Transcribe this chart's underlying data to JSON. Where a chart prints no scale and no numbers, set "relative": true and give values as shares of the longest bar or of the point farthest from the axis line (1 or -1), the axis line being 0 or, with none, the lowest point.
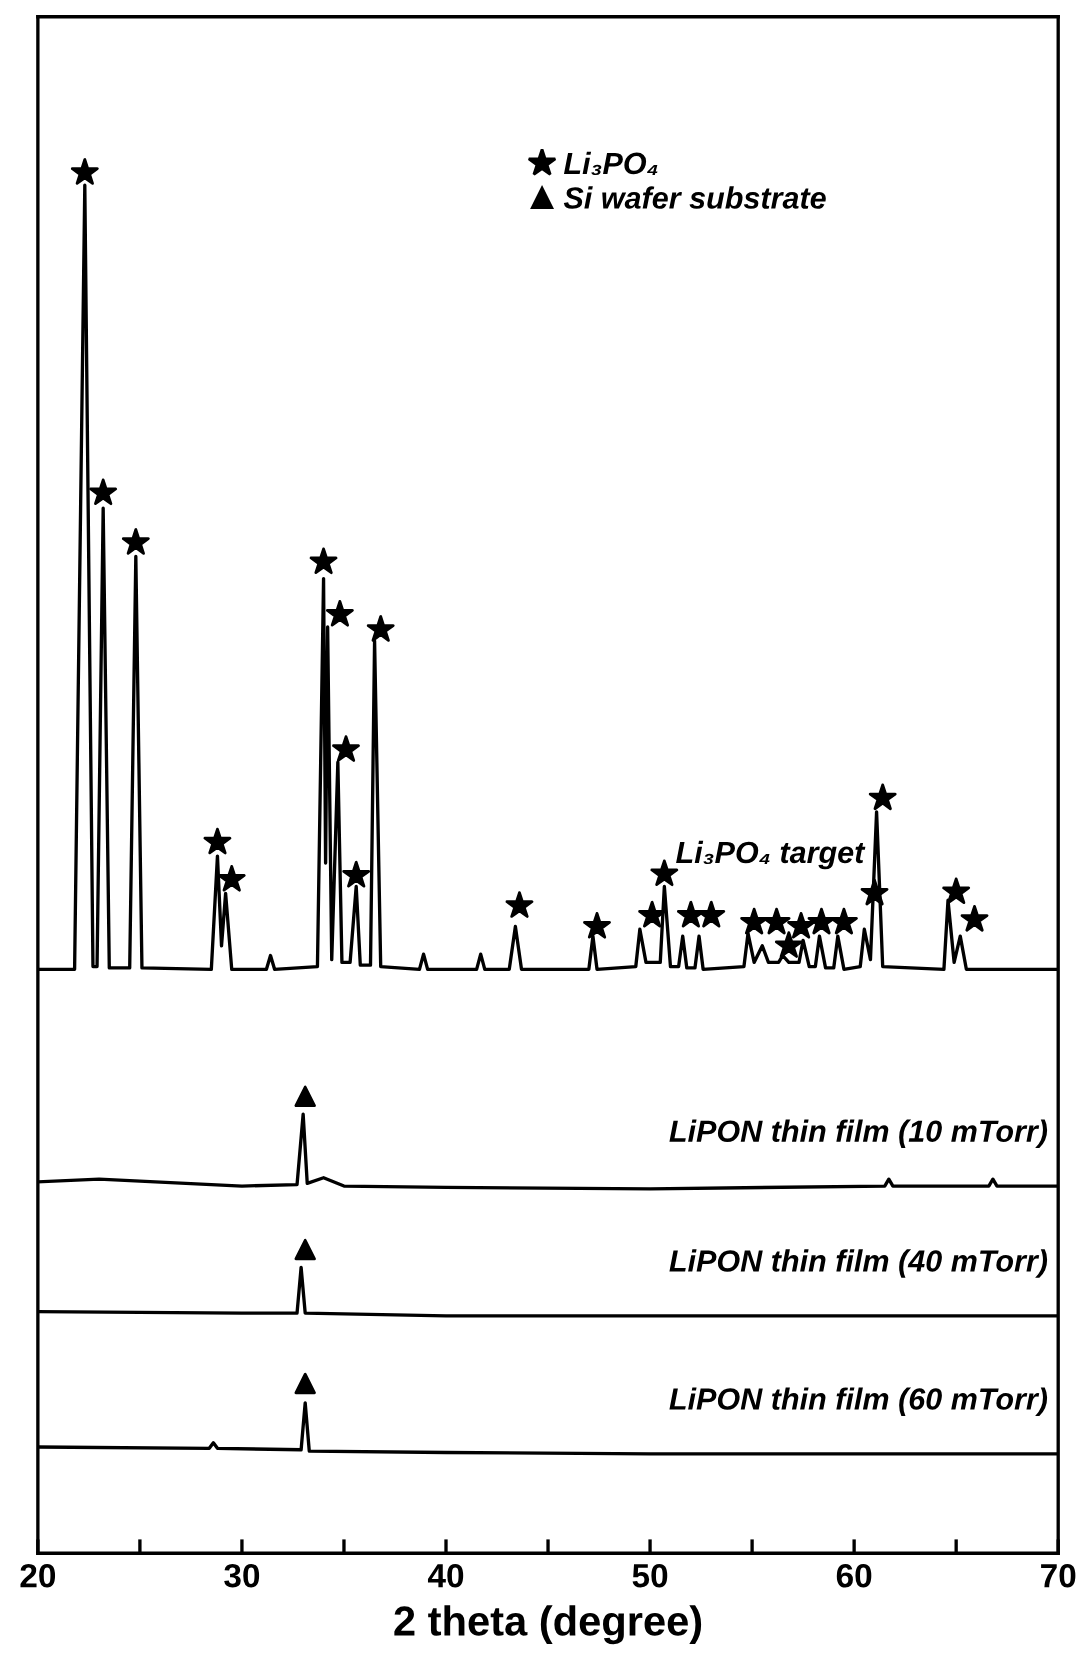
{
  "chart_data": {
    "type": "line",
    "relative": true,
    "xlabel": "2 theta (degree)",
    "xlim": [
      20,
      70
    ],
    "xticks": [
      20,
      {
        "value": 25,
        "label": null
      },
      30,
      {
        "value": 35,
        "label": null
      },
      40,
      {
        "value": 45,
        "label": null
      },
      50,
      {
        "value": 55,
        "label": null
      },
      60,
      {
        "value": 65,
        "label": null
      },
      70
    ],
    "tick_labels": "x",
    "grid": false,
    "legend": "top right",
    "line_style": "solid",
    "series": [
      {
        "name": "Li₃PO₄ target",
        "color": "#000000",
        "marker": "none",
        "x": [
          20,
          21.8,
          22.3,
          22.7,
          22.9,
          23.2,
          23.5,
          24.5,
          24.8,
          25.1,
          28.5,
          28.8,
          29.0,
          29.2,
          29.5,
          31.2,
          31.4,
          31.6,
          33.7,
          34.0,
          34.1,
          34.2,
          34.4,
          34.7,
          34.9,
          35.3,
          35.6,
          35.8,
          36.3,
          36.5,
          36.8,
          38.7,
          38.9,
          39.1,
          41.5,
          41.7,
          41.9,
          43.1,
          43.4,
          43.7,
          47.0,
          47.2,
          47.4,
          49.3,
          49.5,
          49.8,
          50.5,
          50.7,
          51.0,
          51.4,
          51.6,
          51.8,
          52.2,
          52.4,
          52.6,
          54.6,
          54.8,
          55.1,
          55.5,
          55.8,
          56.3,
          56.5,
          56.8,
          57.3,
          57.5,
          57.8,
          58.1,
          58.3,
          58.6,
          59.0,
          59.2,
          59.5,
          60.3,
          60.5,
          60.8,
          61.1,
          61.4,
          64.4,
          64.6,
          64.9,
          65.2,
          65.5,
          70
        ],
        "values": [
          0.423,
          0.423,
          0.991,
          0.425,
          0.425,
          0.757,
          0.424,
          0.424,
          0.722,
          0.424,
          0.423,
          0.505,
          0.44,
          0.478,
          0.423,
          0.423,
          0.433,
          0.423,
          0.425,
          0.706,
          0.5,
          0.671,
          0.43,
          0.573,
          0.428,
          0.428,
          0.483,
          0.426,
          0.426,
          0.661,
          0.425,
          0.423,
          0.434,
          0.423,
          0.423,
          0.434,
          0.423,
          0.423,
          0.454,
          0.423,
          0.423,
          0.447,
          0.423,
          0.425,
          0.452,
          0.428,
          0.428,
          0.483,
          0.425,
          0.425,
          0.447,
          0.424,
          0.424,
          0.447,
          0.423,
          0.425,
          0.449,
          0.428,
          0.44,
          0.428,
          0.428,
          0.433,
          0.428,
          0.428,
          0.444,
          0.425,
          0.425,
          0.447,
          0.424,
          0.424,
          0.447,
          0.423,
          0.425,
          0.452,
          0.43,
          0.537,
          0.425,
          0.423,
          0.473,
          0.428,
          0.447,
          0.423,
          0.423
        ]
      },
      {
        "name": "LiPON thin film (10 mTorr)",
        "color": "#000000",
        "marker": "none",
        "x": [
          20,
          23,
          30,
          32.7,
          33.0,
          33.2,
          34,
          35,
          40,
          50,
          61.5,
          61.7,
          61.9,
          66.6,
          66.8,
          67.0,
          70
        ],
        "values": [
          0.269,
          0.271,
          0.266,
          0.267,
          0.318,
          0.268,
          0.272,
          0.266,
          0.265,
          0.264,
          0.266,
          0.271,
          0.266,
          0.266,
          0.271,
          0.266,
          0.266
        ]
      },
      {
        "name": "LiPON thin film (40 mTorr)",
        "color": "#000000",
        "marker": "none",
        "x": [
          20,
          30,
          32.7,
          32.9,
          33.1,
          40,
          50,
          60,
          70
        ],
        "values": [
          0.175,
          0.174,
          0.174,
          0.207,
          0.174,
          0.172,
          0.172,
          0.172,
          0.172
        ]
      },
      {
        "name": "LiPON thin film (60 mTorr)",
        "color": "#000000",
        "marker": "none",
        "x": [
          20,
          28.4,
          28.6,
          28.8,
          32.9,
          33.1,
          33.3,
          40,
          50,
          60,
          70
        ],
        "values": [
          0.077,
          0.076,
          0.08,
          0.076,
          0.075,
          0.109,
          0.074,
          0.073,
          0.072,
          0.072,
          0.072
        ]
      },
      {
        "name": "Li₃PO₄",
        "type": "scatter",
        "color": "#000000",
        "marker": "star",
        "x": [
          22.3,
          23.2,
          24.8,
          28.8,
          29.5,
          34.0,
          34.8,
          35.1,
          35.6,
          36.8,
          43.6,
          47.4,
          50.1,
          50.7,
          52.0,
          53.0,
          55.1,
          56.2,
          56.8,
          57.4,
          58.4,
          59.5,
          61.0,
          61.4,
          65.0,
          65.9
        ],
        "values": [
          1.0,
          0.768,
          0.732,
          0.515,
          0.488,
          0.718,
          0.68,
          0.582,
          0.491,
          0.669,
          0.469,
          0.454,
          0.462,
          0.492,
          0.462,
          0.462,
          0.457,
          0.457,
          0.44,
          0.454,
          0.457,
          0.457,
          0.478,
          0.547,
          0.479,
          0.459
        ]
      },
      {
        "name": "Si wafer substrate",
        "type": "scatter",
        "color": "#000000",
        "marker": "triangle",
        "x": [
          33.1,
          33.1,
          33.1
        ],
        "values": [
          0.331,
          0.22,
          0.123
        ]
      }
    ]
  }
}
